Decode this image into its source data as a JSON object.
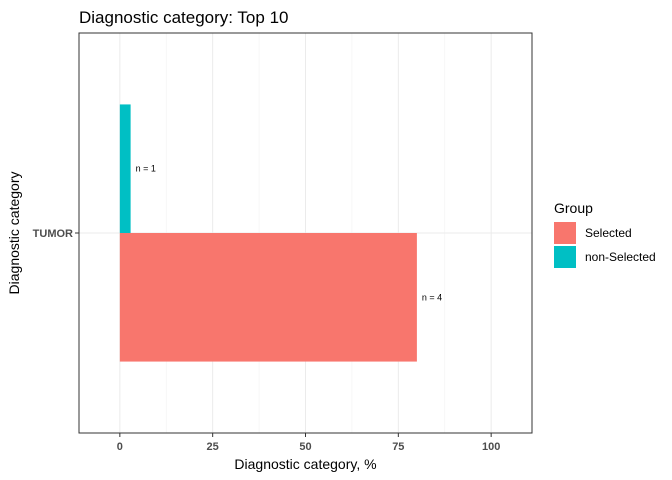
{
  "chart_data": {
    "type": "bar",
    "orientation": "horizontal",
    "title": "Diagnostic category: Top 10",
    "xlabel": "Diagnostic category, %",
    "ylabel": "Diagnostic category",
    "categories": [
      "TUMOR"
    ],
    "xlim": [
      -11,
      111
    ],
    "xticks": [
      0,
      25,
      50,
      75,
      100
    ],
    "grid": true,
    "legend": {
      "title": "Group",
      "position": "right",
      "entries": [
        "Selected",
        "non-Selected"
      ]
    },
    "series": [
      {
        "name": "Selected",
        "color": "#F8766D",
        "values": [
          80
        ],
        "labels": [
          "n = 4"
        ]
      },
      {
        "name": "non-Selected",
        "color": "#00BFC4",
        "values": [
          2.9
        ],
        "labels": [
          "n = 1"
        ]
      }
    ]
  }
}
